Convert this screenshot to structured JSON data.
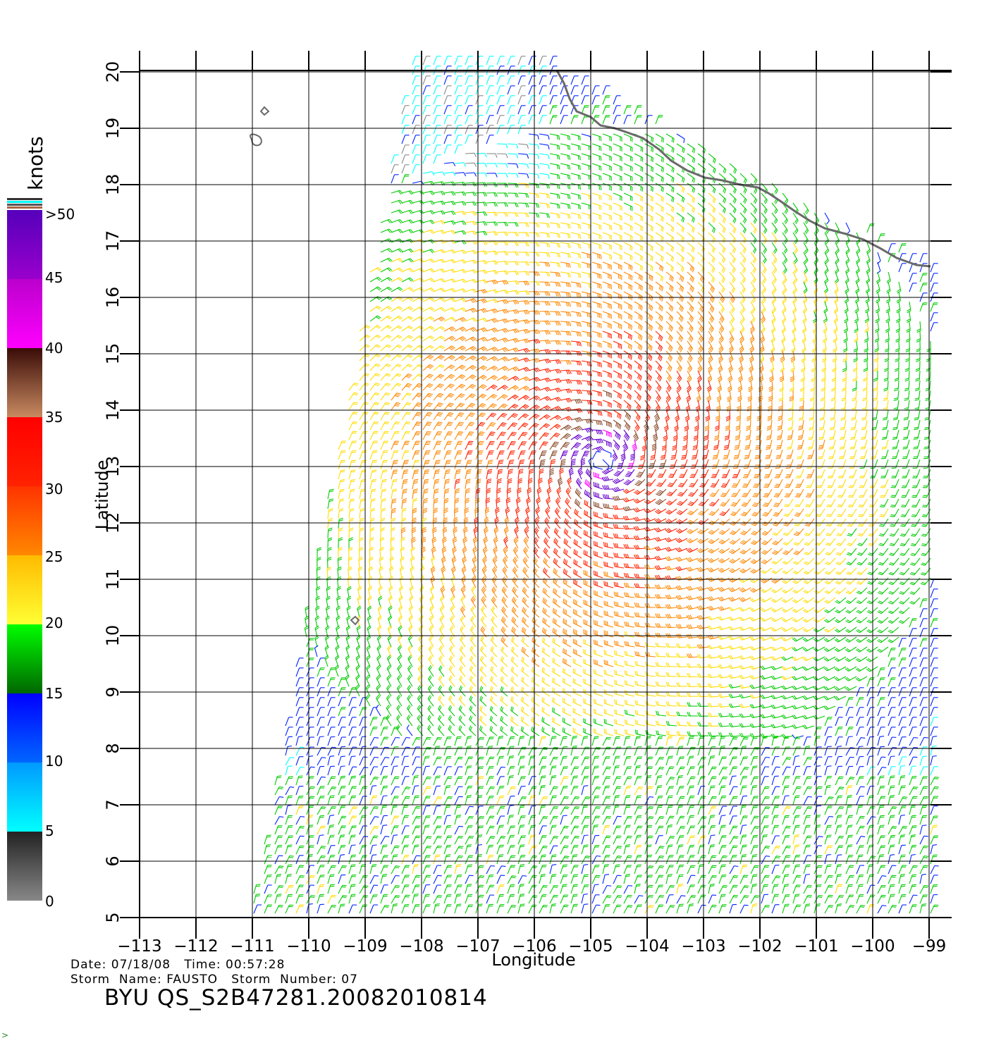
{
  "legend": {
    "unit": "knots",
    "labels": [
      ">50",
      "45",
      "40",
      "35",
      "30",
      "25",
      "20",
      "15",
      "10",
      "5",
      "0"
    ],
    "colors": {
      "gray": "#888888",
      "black": "#333333",
      "cyan": "#00ffff",
      "blue": "#0022ff",
      "green": "#00cc00",
      "yellow": "#ffdd00",
      "orange": "#ff8800",
      "red": "#ff2200",
      "brown": "#8b4a2a",
      "magenta": "#ff00ff",
      "purple": "#6600cc"
    }
  },
  "map": {
    "x_label": "Longitude",
    "y_label": "Latitude",
    "lon_range": [
      -113,
      -99
    ],
    "lat_range": [
      5,
      20
    ],
    "lon_ticks": [
      "-113",
      "-112",
      "-111",
      "-110",
      "-109",
      "-108",
      "-107",
      "-106",
      "-105",
      "-104",
      "-103",
      "-102",
      "-101",
      "-100",
      "-99"
    ],
    "lat_ticks": [
      "5",
      "6",
      "7",
      "8",
      "9",
      "10",
      "11",
      "12",
      "13",
      "14",
      "15",
      "16",
      "17",
      "18",
      "19",
      "20"
    ],
    "storm_center": {
      "lon": -104.8,
      "lat": 13.1
    }
  },
  "info": {
    "date_line": "Date: 07/18/08   Time: 00:57:28",
    "storm_line": "Storm  Name: FAUSTO   Storm  Number: 07",
    "product": "BYU  QS_S2B47281.20082010814"
  }
}
